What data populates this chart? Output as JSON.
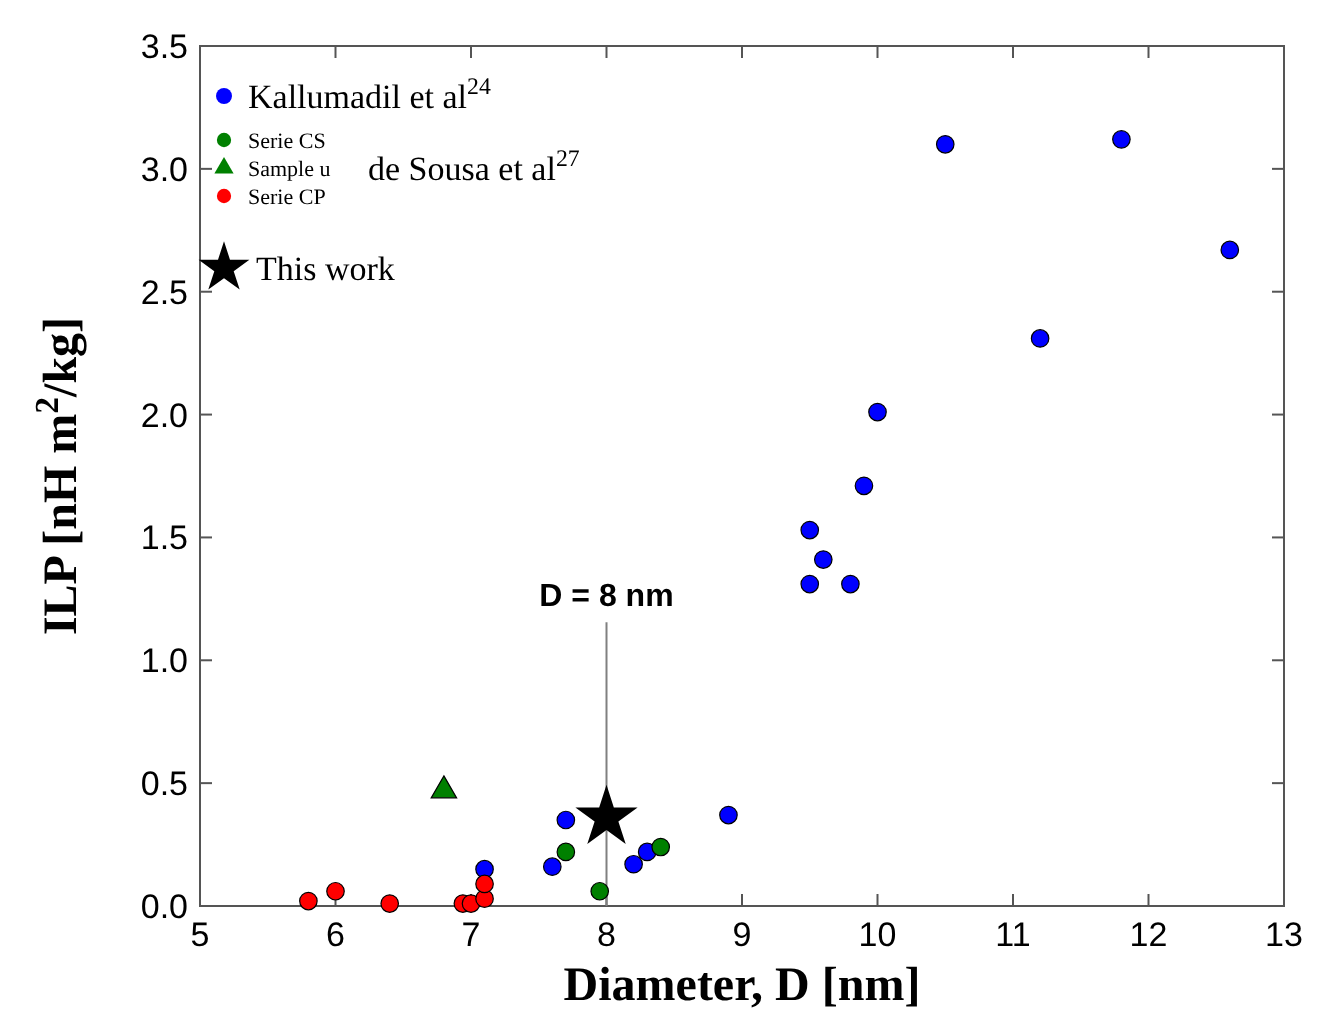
{
  "chart_data": {
    "type": "scatter",
    "xlabel": "Diameter, D [nm]",
    "ylabel": "ILP [nH m$^{2}$/kg]",
    "xlim": [
      5,
      13
    ],
    "ylim": [
      0,
      3.5
    ],
    "xticks": [
      5,
      6,
      7,
      8,
      9,
      10,
      11,
      12,
      13
    ],
    "yticks": [
      {
        "value": 0,
        "label": "0.0"
      },
      {
        "value": 0.5,
        "label": "0.5"
      },
      {
        "value": 1,
        "label": "1.0"
      },
      {
        "value": 1.5,
        "label": "1.5"
      },
      {
        "value": 2,
        "label": "2.0"
      },
      {
        "value": 2.5,
        "label": "2.5"
      },
      {
        "value": 3,
        "label": "3.0"
      },
      {
        "value": 3.5,
        "label": "3.5"
      }
    ],
    "grid": false,
    "legend": "top left",
    "annotations": [
      "de Sousa et al$^{27}$"
    ],
    "ref_lines": [
      {
        "axis": "x",
        "value": 8,
        "label": "D = 8 nm",
        "color": "#808080"
      }
    ],
    "series": [
      {
        "name": "Kallumadil et al$^{24}$",
        "color": "#0000ff",
        "marker": "circle",
        "x": [
          7.1,
          7.6,
          7.7,
          8.2,
          8.3,
          8.9,
          9.5,
          9.5,
          9.6,
          9.8,
          9.9,
          10.0,
          10.5,
          11.2,
          11.8,
          12.6
        ],
        "values": [
          0.15,
          0.16,
          0.35,
          0.17,
          0.22,
          0.37,
          1.31,
          1.53,
          1.41,
          1.31,
          1.71,
          2.01,
          3.1,
          2.31,
          3.12,
          2.67
        ]
      },
      {
        "name": "Serie CS",
        "color": "#008000",
        "marker": "circle",
        "x": [
          7.7,
          7.95,
          8.4
        ],
        "values": [
          0.22,
          0.06,
          0.24
        ]
      },
      {
        "name": "Sample u",
        "color": "#008000",
        "marker": "triangle",
        "x": [
          6.8
        ],
        "values": [
          0.47
        ]
      },
      {
        "name": "Serie CP",
        "color": "#ff0000",
        "marker": "circle",
        "x": [
          5.8,
          6.0,
          6.4,
          6.94,
          7.0,
          7.1,
          7.1
        ],
        "values": [
          0.02,
          0.06,
          0.01,
          0.01,
          0.01,
          0.03,
          0.09
        ]
      },
      {
        "name": "This work",
        "color": "#000000",
        "marker": "star",
        "x": [
          8.0
        ],
        "values": [
          0.36
        ]
      }
    ]
  }
}
